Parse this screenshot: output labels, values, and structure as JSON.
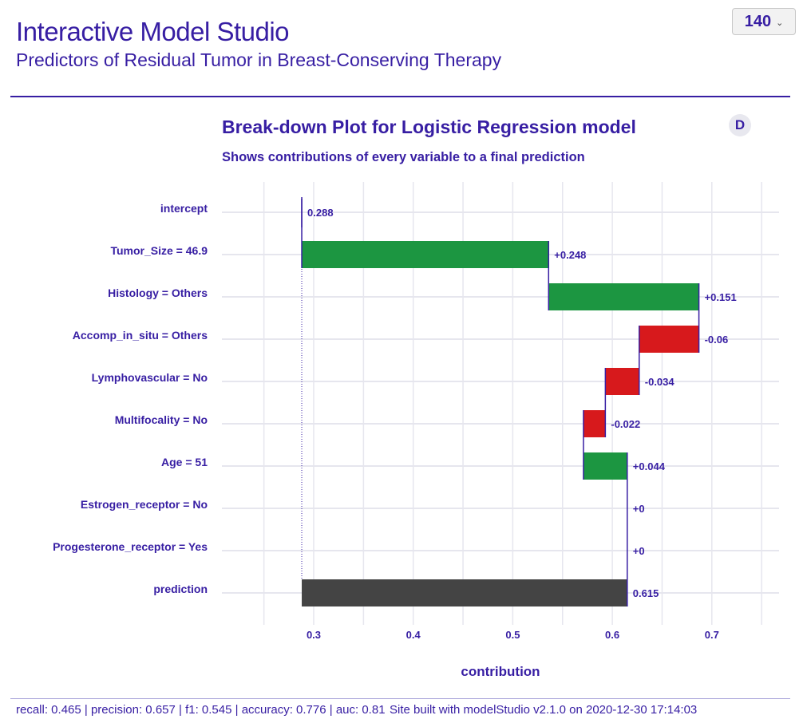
{
  "header": {
    "title": "Interactive Model Studio",
    "subtitle": "Predictors of Residual Tumor in Breast-Conserving Therapy",
    "observation_select": {
      "value": "140",
      "icon": "chevron-down-icon"
    }
  },
  "panel": {
    "badge": "D",
    "title": "Break-down Plot for Logistic Regression model",
    "subtitle": "Shows contributions of every variable to a final prediction"
  },
  "chart_data": {
    "type": "waterfall",
    "title": "Break-down Plot for Logistic Regression model",
    "subtitle": "Shows contributions of every variable to a final prediction",
    "xlabel": "contribution",
    "ylabel": "",
    "xlim": [
      0.25,
      0.78
    ],
    "xticks": [
      0.3,
      0.4,
      0.5,
      0.6,
      0.7
    ],
    "xtick_labels": [
      "0.3",
      "0.4",
      "0.5",
      "0.6",
      "0.7"
    ],
    "minor_gridlines": [
      0.25,
      0.35,
      0.45,
      0.55,
      0.65,
      0.75
    ],
    "grid": true,
    "colors": {
      "positive": "#1c9641",
      "negative": "#d7191c",
      "prediction": "#444444",
      "connector": "#371ea3",
      "text": "#371ea3"
    },
    "rows": [
      {
        "variable": "intercept",
        "kind": "intercept",
        "start": 0.288,
        "end": 0.288,
        "contribution": 0.288,
        "label": "0.288"
      },
      {
        "variable": "Tumor_Size = 46.9",
        "kind": "positive",
        "start": 0.288,
        "end": 0.536,
        "contribution": 0.248,
        "label": "+0.248"
      },
      {
        "variable": "Histology = Others",
        "kind": "positive",
        "start": 0.536,
        "end": 0.687,
        "contribution": 0.151,
        "label": "+0.151"
      },
      {
        "variable": "Accomp_in_situ = Others",
        "kind": "negative",
        "start": 0.687,
        "end": 0.627,
        "contribution": -0.06,
        "label": "-0.06"
      },
      {
        "variable": "Lymphovascular = No",
        "kind": "negative",
        "start": 0.627,
        "end": 0.593,
        "contribution": -0.034,
        "label": "-0.034"
      },
      {
        "variable": "Multifocality = No",
        "kind": "negative",
        "start": 0.593,
        "end": 0.571,
        "contribution": -0.022,
        "label": "-0.022"
      },
      {
        "variable": "Age = 51",
        "kind": "positive",
        "start": 0.571,
        "end": 0.615,
        "contribution": 0.044,
        "label": "+0.044"
      },
      {
        "variable": "Estrogen_receptor = No",
        "kind": "positive",
        "start": 0.615,
        "end": 0.615,
        "contribution": 0,
        "label": "+0"
      },
      {
        "variable": "Progesterone_receptor = Yes",
        "kind": "positive",
        "start": 0.615,
        "end": 0.615,
        "contribution": 0,
        "label": "+0"
      },
      {
        "variable": "prediction",
        "kind": "prediction",
        "start": 0.288,
        "end": 0.615,
        "contribution": 0.615,
        "label": "0.615"
      }
    ]
  },
  "footer": {
    "metrics": "recall: 0.465 | precision: 0.657 | f1: 0.545 | accuracy: 0.776 | auc: 0.81",
    "credit": "Site built with modelStudio v2.1.0 on 2020-12-30 17:14:03"
  }
}
